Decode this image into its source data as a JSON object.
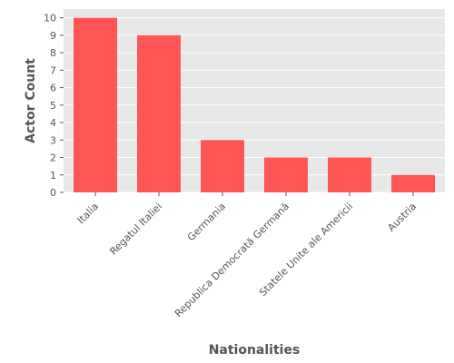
{
  "chart_data": {
    "type": "bar",
    "categories": [
      "Italia",
      "Regatul Italiei",
      "Germania",
      "Republica Democrată Germană",
      "Statele Unite ale Americii",
      "Austria"
    ],
    "values": [
      10,
      9,
      3,
      2,
      2,
      1
    ],
    "xlabel": "Nationalities",
    "ylabel": "Actor Count",
    "ylim": [
      0,
      10.5
    ],
    "yticks": [
      0,
      1,
      2,
      3,
      4,
      5,
      6,
      7,
      8,
      9,
      10
    ],
    "grid": true,
    "legend": "none",
    "colors": {
      "bar": "#ff5555",
      "panel_background": "#e8e8e8",
      "grid": "#ffffff",
      "text": "#555555"
    }
  }
}
